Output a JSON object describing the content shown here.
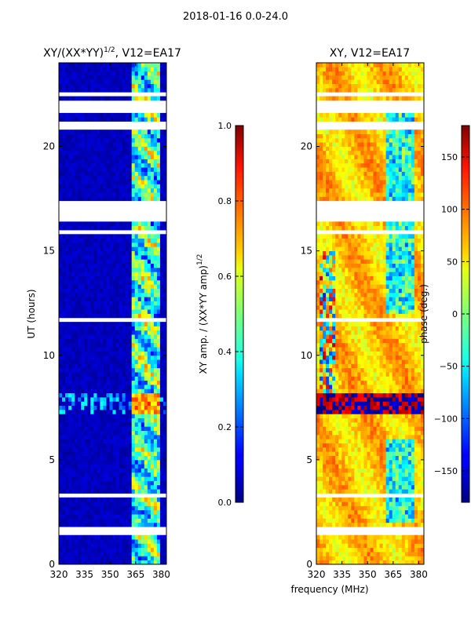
{
  "suptitle": "2018-01-16 0.0-24.0",
  "shared_xlabel": "frequency (MHz)",
  "chart_data": [
    {
      "type": "heatmap",
      "title": "XY/(XX*YY)^1/2, V12=EA17",
      "title_main": "XY/(XX*YY)",
      "title_exp": "1/2",
      "title_tail": ", V12=EA17",
      "xlabel": "frequency (MHz)",
      "ylabel": "UT (hours)",
      "xlim": [
        320,
        383
      ],
      "ylim": [
        0,
        24
      ],
      "xticks": [
        320,
        335,
        350,
        365,
        380
      ],
      "yticks": [
        0,
        5,
        10,
        15,
        20
      ],
      "colorbar": {
        "label": "XY amp. / (XX*YY amp)^1/2",
        "label_main": "XY amp. / (XX*YY amp)",
        "label_exp": "1/2",
        "range": [
          0.0,
          1.0
        ],
        "ticks": [
          "0.0",
          "0.2",
          "0.4",
          "0.6",
          "0.8",
          "1.0"
        ],
        "colormap": "jet"
      },
      "flagged_hours": [
        [
          1.5,
          1.9
        ],
        [
          3.2,
          3.5
        ],
        [
          11.6,
          11.85
        ],
        [
          15.8,
          16.05
        ],
        [
          16.5,
          17.3
        ],
        [
          20.8,
          21.1
        ],
        [
          21.7,
          22.1
        ],
        [
          22.4,
          22.7
        ]
      ],
      "high_band_mhz": [
        362,
        380
      ],
      "rfi_hours": [
        7.3,
        8.1
      ]
    },
    {
      "type": "heatmap",
      "title": "XY, V12=EA17",
      "xlabel": "frequency (MHz)",
      "ylabel": "",
      "xlim": [
        320,
        383
      ],
      "ylim": [
        0,
        24
      ],
      "xticks": [
        320,
        335,
        350,
        365,
        380
      ],
      "yticks": [
        0,
        5,
        10,
        15,
        20
      ],
      "colorbar": {
        "label": "phase (deg.)",
        "range": [
          -180,
          180
        ],
        "ticks": [
          "150",
          "100",
          "50",
          "0",
          "−50",
          "−100",
          "−150"
        ],
        "colormap": "jet"
      },
      "flagged_hours": [
        [
          1.5,
          1.9
        ],
        [
          3.2,
          3.5
        ],
        [
          11.6,
          11.85
        ],
        [
          15.8,
          16.05
        ],
        [
          16.5,
          17.3
        ],
        [
          20.8,
          21.1
        ],
        [
          21.7,
          22.1
        ],
        [
          22.4,
          22.7
        ]
      ],
      "rfi_hours": [
        7.3,
        8.1
      ]
    }
  ]
}
